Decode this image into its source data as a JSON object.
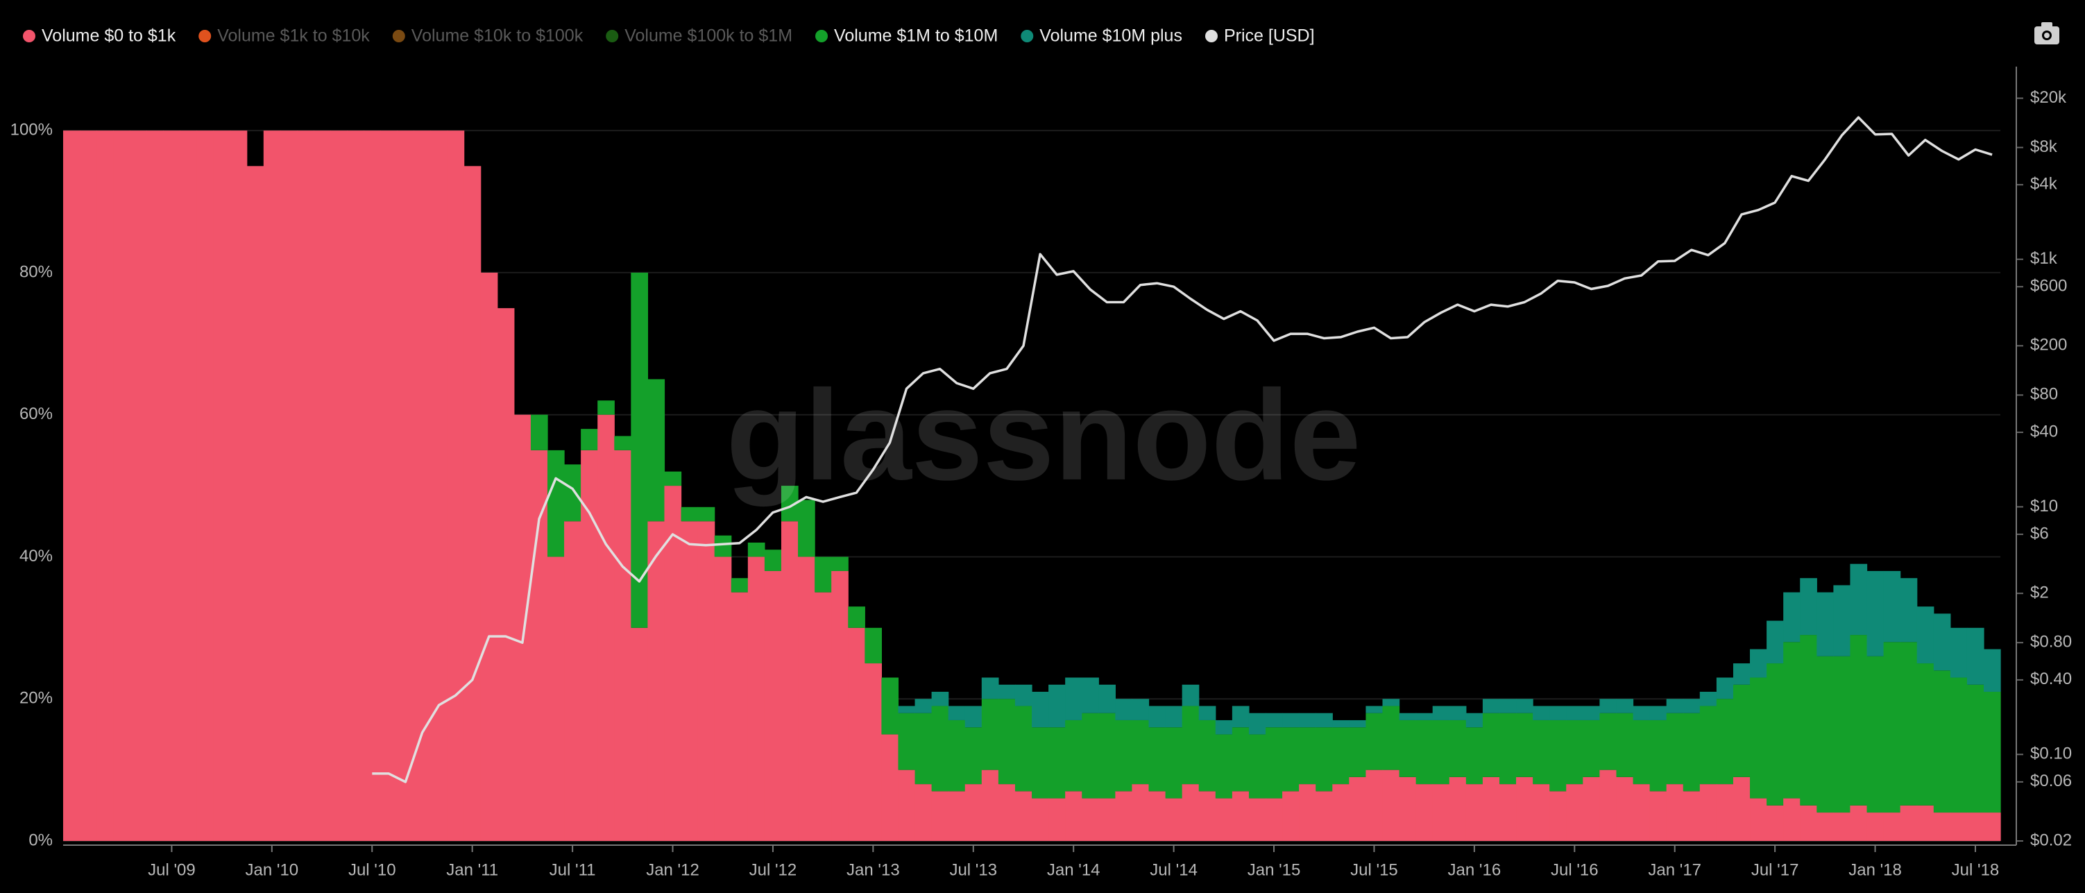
{
  "chart_data": {
    "type": "stacked-bar-line",
    "watermark": "glassnode",
    "x": [
      "Jan '09",
      "Feb '09",
      "Mar '09",
      "Apr '09",
      "May '09",
      "Jun '09",
      "Jul '09",
      "Aug '09",
      "Sep '09",
      "Oct '09",
      "Nov '09",
      "Dec '09",
      "Jan '10",
      "Feb '10",
      "Mar '10",
      "Apr '10",
      "May '10",
      "Jun '10",
      "Jul '10",
      "Aug '10",
      "Sep '10",
      "Oct '10",
      "Nov '10",
      "Dec '10",
      "Jan '11",
      "Feb '11",
      "Mar '11",
      "Apr '11",
      "May '11",
      "Jun '11",
      "Jul '11",
      "Aug '11",
      "Sep '11",
      "Oct '11",
      "Nov '11",
      "Dec '11",
      "Jan '12",
      "Feb '12",
      "Mar '12",
      "Apr '12",
      "May '12",
      "Jun '12",
      "Jul '12",
      "Aug '12",
      "Sep '12",
      "Oct '12",
      "Nov '12",
      "Dec '12",
      "Jan '13",
      "Feb '13",
      "Mar '13",
      "Apr '13",
      "May '13",
      "Jun '13",
      "Jul '13",
      "Aug '13",
      "Sep '13",
      "Oct '13",
      "Nov '13",
      "Dec '13",
      "Jan '14",
      "Feb '14",
      "Mar '14",
      "Apr '14",
      "May '14",
      "Jun '14",
      "Jul '14",
      "Aug '14",
      "Sep '14",
      "Oct '14",
      "Nov '14",
      "Dec '14",
      "Jan '15",
      "Feb '15",
      "Mar '15",
      "Apr '15",
      "May '15",
      "Jun '15",
      "Jul '15",
      "Aug '15",
      "Sep '15",
      "Oct '15",
      "Nov '15",
      "Dec '15",
      "Jan '16",
      "Feb '16",
      "Mar '16",
      "Apr '16",
      "May '16",
      "Jun '16",
      "Jul '16",
      "Aug '16",
      "Sep '16",
      "Oct '16",
      "Nov '16",
      "Dec '16",
      "Jan '17",
      "Feb '17",
      "Mar '17",
      "Apr '17",
      "May '17",
      "Jun '17",
      "Jul '17",
      "Aug '17",
      "Sep '17",
      "Oct '17",
      "Nov '17",
      "Dec '17",
      "Jan '18",
      "Feb '18",
      "Mar '18",
      "Apr '18",
      "May '18",
      "Jun '18",
      "Jul '18",
      "Aug '18"
    ],
    "xticks": [
      "Jul '09",
      "Jan '10",
      "Jul '10",
      "Jan '11",
      "Jul '11",
      "Jan '12",
      "Jul '12",
      "Jan '13",
      "Jul '13",
      "Jan '14",
      "Jul '14",
      "Jan '15",
      "Jul '15",
      "Jan '16",
      "Jul '16",
      "Jan '17",
      "Jul '17",
      "Jan '18",
      "Jul '18"
    ],
    "ylim": [
      0,
      109
    ],
    "yticks": [
      {
        "value": 0,
        "label": "0%"
      },
      {
        "value": 20,
        "label": "20%"
      },
      {
        "value": 40,
        "label": "40%"
      },
      {
        "value": 60,
        "label": "60%"
      },
      {
        "value": 80,
        "label": "80%"
      },
      {
        "value": 100,
        "label": "100%"
      }
    ],
    "y2lim": [
      0.02,
      36000
    ],
    "y2scale": "log",
    "y2ticks": [
      {
        "value": 0.02,
        "label": "$0.02"
      },
      {
        "value": 0.06,
        "label": "$0.06"
      },
      {
        "value": 0.1,
        "label": "$0.10"
      },
      {
        "value": 0.4,
        "label": "$0.40"
      },
      {
        "value": 0.8,
        "label": "$0.80"
      },
      {
        "value": 2,
        "label": "$2"
      },
      {
        "value": 6,
        "label": "$6"
      },
      {
        "value": 10,
        "label": "$10"
      },
      {
        "value": 40,
        "label": "$40"
      },
      {
        "value": 80,
        "label": "$80"
      },
      {
        "value": 200,
        "label": "$200"
      },
      {
        "value": 600,
        "label": "$600"
      },
      {
        "value": 1000,
        "label": "$1k"
      },
      {
        "value": 4000,
        "label": "$4k"
      },
      {
        "value": 8000,
        "label": "$8k"
      },
      {
        "value": 20000,
        "label": "$20k"
      }
    ],
    "grid": true,
    "series": [
      {
        "name": "Volume $0 to $1k",
        "color": "#f2546b",
        "values": [
          100,
          100,
          100,
          100,
          100,
          100,
          100,
          100,
          100,
          100,
          100,
          95,
          100,
          100,
          100,
          100,
          100,
          100,
          100,
          100,
          100,
          100,
          100,
          100,
          95,
          80,
          75,
          60,
          55,
          40,
          45,
          55,
          60,
          55,
          30,
          45,
          50,
          45,
          45,
          40,
          35,
          40,
          38,
          45,
          40,
          35,
          38,
          30,
          25,
          15,
          10,
          8,
          7,
          7,
          8,
          10,
          8,
          7,
          6,
          6,
          7,
          6,
          6,
          7,
          8,
          7,
          6,
          8,
          7,
          6,
          7,
          6,
          6,
          7,
          8,
          7,
          8,
          9,
          10,
          10,
          9,
          8,
          8,
          9,
          8,
          9,
          8,
          9,
          8,
          7,
          8,
          9,
          10,
          9,
          8,
          7,
          8,
          7,
          8,
          8,
          9,
          6,
          5,
          6,
          5,
          4,
          4,
          5,
          4,
          4,
          5,
          5,
          4,
          4,
          4,
          4
        ]
      },
      {
        "name": "Volume $1k to $10k",
        "color": "#e0521e",
        "hidden": true
      },
      {
        "name": "Volume $10k to $100k",
        "color": "#7a4a12",
        "hidden": true
      },
      {
        "name": "Volume $100k to $1M",
        "color": "#1a5c12",
        "hidden": true
      },
      {
        "name": "Volume $1M to $10M",
        "color": "#14a02a",
        "values": [
          0,
          0,
          0,
          0,
          0,
          0,
          0,
          0,
          0,
          0,
          0,
          0,
          0,
          0,
          0,
          0,
          0,
          0,
          0,
          0,
          0,
          0,
          0,
          0,
          0,
          0,
          0,
          0,
          5,
          15,
          8,
          3,
          2,
          2,
          50,
          20,
          2,
          2,
          2,
          3,
          2,
          2,
          3,
          5,
          8,
          5,
          2,
          3,
          5,
          8,
          8,
          10,
          12,
          10,
          8,
          10,
          12,
          12,
          10,
          10,
          10,
          12,
          12,
          10,
          9,
          9,
          10,
          11,
          10,
          9,
          9,
          9,
          10,
          9,
          8,
          9,
          8,
          7,
          8,
          9,
          8,
          9,
          9,
          8,
          8,
          9,
          10,
          9,
          9,
          10,
          9,
          8,
          8,
          9,
          9,
          10,
          10,
          11,
          11,
          12,
          13,
          17,
          20,
          22,
          24,
          22,
          22,
          24,
          22,
          24,
          23,
          20,
          20,
          19,
          18,
          17
        ]
      },
      {
        "name": "Volume $10M plus",
        "color": "#0f8a77",
        "values": [
          0,
          0,
          0,
          0,
          0,
          0,
          0,
          0,
          0,
          0,
          0,
          0,
          0,
          0,
          0,
          0,
          0,
          0,
          0,
          0,
          0,
          0,
          0,
          0,
          0,
          0,
          0,
          0,
          0,
          0,
          0,
          0,
          0,
          0,
          0,
          0,
          0,
          0,
          0,
          0,
          0,
          0,
          0,
          0,
          0,
          0,
          0,
          0,
          0,
          0,
          1,
          2,
          2,
          2,
          3,
          3,
          2,
          3,
          5,
          6,
          6,
          5,
          4,
          3,
          3,
          3,
          3,
          3,
          2,
          2,
          3,
          3,
          2,
          2,
          2,
          2,
          1,
          1,
          1,
          1,
          1,
          1,
          2,
          2,
          2,
          2,
          2,
          2,
          2,
          2,
          2,
          2,
          2,
          2,
          2,
          2,
          2,
          2,
          2,
          3,
          3,
          4,
          6,
          7,
          8,
          9,
          10,
          10,
          12,
          10,
          9,
          8,
          8,
          7,
          8,
          6
        ]
      },
      {
        "name": "Price [USD]",
        "color": "#e0e0e0",
        "axis": "y2",
        "kind": "line",
        "values": [
          null,
          null,
          null,
          null,
          null,
          null,
          null,
          null,
          null,
          null,
          null,
          null,
          null,
          null,
          null,
          null,
          null,
          null,
          0.07,
          0.07,
          0.06,
          0.15,
          0.25,
          0.3,
          0.4,
          0.9,
          0.9,
          0.8,
          8,
          17,
          14,
          9,
          5,
          3.3,
          2.5,
          4,
          6,
          5,
          4.9,
          5,
          5.1,
          6.5,
          9,
          10,
          12,
          11,
          12,
          13,
          20,
          33,
          90,
          120,
          130,
          100,
          90,
          120,
          130,
          200,
          1100,
          750,
          800,
          570,
          450,
          450,
          620,
          640,
          600,
          480,
          390,
          330,
          380,
          320,
          220,
          250,
          250,
          230,
          235,
          260,
          280,
          230,
          235,
          310,
          370,
          430,
          380,
          430,
          415,
          450,
          530,
          670,
          650,
          575,
          610,
          700,
          740,
          960,
          970,
          1190,
          1080,
          1350,
          2300,
          2500,
          2870,
          4700,
          4300,
          6400,
          10000,
          14000,
          10200,
          10300,
          6900,
          9200,
          7500,
          6400,
          7700,
          7000
        ]
      }
    ]
  }
}
